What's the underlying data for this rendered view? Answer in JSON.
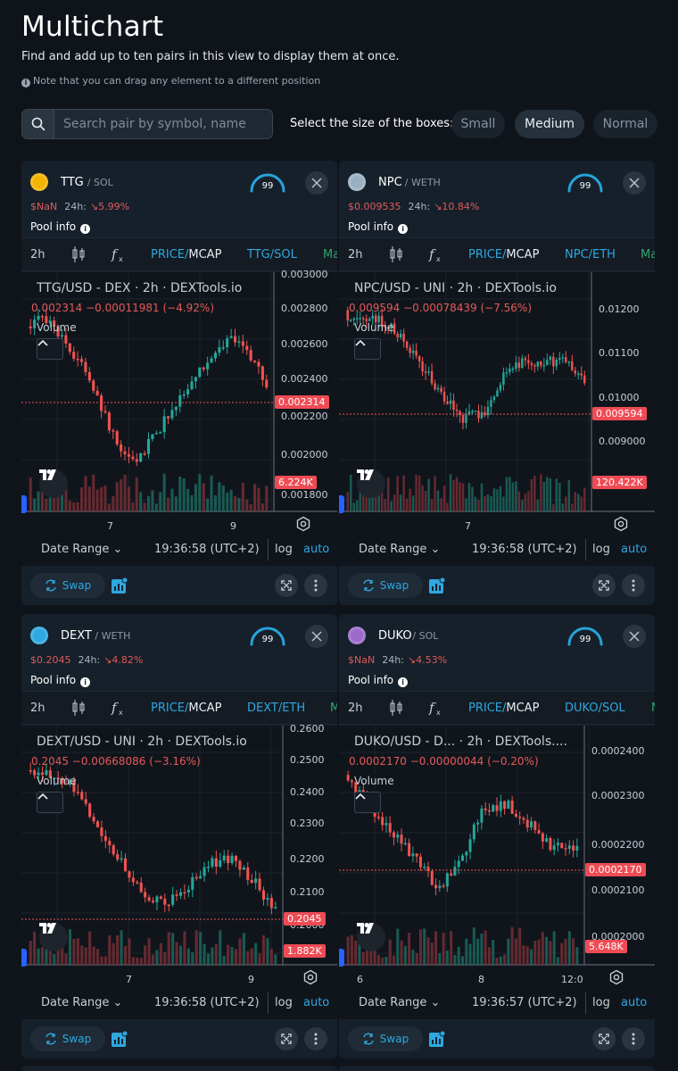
{
  "page": {
    "title": "Multichart",
    "subtitle": "Find and add up to ten pairs in this view to display them at once.",
    "note": "Note that you can drag any element to a different position"
  },
  "search": {
    "placeholder": "Search pair by symbol, name"
  },
  "sizes": {
    "label": "Select the size of the boxes:",
    "small": "Small",
    "medium": "Medium",
    "normal": "Normal",
    "selected": "Medium"
  },
  "cards": [
    {
      "symbol": "TTG",
      "quote": "/ SOL",
      "score": "99",
      "price": "$NaN",
      "change_label": "24h:",
      "change": "5.99%",
      "pool_info": "Pool info",
      "toolbar": {
        "interval": "2h",
        "price": "PRICE",
        "mcap": "MCAP",
        "pair": "TTG/SOL",
        "extra": "Ma"
      },
      "legend": "TTG/USD - DEX · 2h · DEXTools.io",
      "ohlc": "0.002314  −0.00011981 (−4.92%)",
      "volume_label": "Volume",
      "y_ticks": [
        "0.003000",
        "0.002800",
        "0.002600",
        "0.002400",
        "0.002200",
        "0.002000",
        "0.001800"
      ],
      "price_badge": "0.002314",
      "volume_badge": "6.224K",
      "x_ticks": [
        "7",
        "9"
      ],
      "date_range": "Date Range",
      "time": "19:36:58 (UTC+2)",
      "log": "log",
      "auto": "auto",
      "swap": "Swap",
      "icon_color": "#f5b400"
    },
    {
      "symbol": "NPC",
      "quote": "/ WETH",
      "score": "99",
      "price": "$0.009535",
      "change_label": "24h:",
      "change": "10.84%",
      "pool_info": "Pool info",
      "toolbar": {
        "interval": "2h",
        "price": "PRICE",
        "mcap": "MCAP",
        "pair": "NPC/ETH",
        "extra": "Ma"
      },
      "legend": "NPC/USD - UNI · 2h · DEXTools.io",
      "ohlc": "0.009594  −0.00078439 (−7.56%)",
      "volume_label": "Volume",
      "y_ticks": [
        "0.01200",
        "0.01100",
        "0.01000",
        "0.009000"
      ],
      "price_badge": "0.009594",
      "volume_badge": "120.422K",
      "x_ticks": [
        "7"
      ],
      "date_range": "Date Range",
      "time": "19:36:58 (UTC+2)",
      "log": "log",
      "auto": "auto",
      "swap": "Swap",
      "icon_color": "#9ab0c2"
    },
    {
      "symbol": "DEXT",
      "quote": "/ WETH",
      "score": "99",
      "price": "$0.2045",
      "change_label": "24h:",
      "change": "4.82%",
      "pool_info": "Pool info",
      "toolbar": {
        "interval": "2h",
        "price": "PRICE",
        "mcap": "MCAP",
        "pair": "DEXT/ETH",
        "extra": "M"
      },
      "legend": "DEXT/USD - UNI · 2h · DEXTools.io",
      "ohlc": "0.2045  −0.00668086 (−3.16%)",
      "volume_label": "Volume",
      "y_ticks": [
        "0.2600",
        "0.2500",
        "0.2400",
        "0.2300",
        "0.2200",
        "0.2100",
        "0.2000"
      ],
      "price_badge": "0.2045",
      "volume_badge": "1.882K",
      "x_ticks": [
        "7",
        "9"
      ],
      "date_range": "Date Range",
      "time": "19:36:58 (UTC+2)",
      "log": "log",
      "auto": "auto",
      "swap": "Swap",
      "icon_color": "#2ea8e0"
    },
    {
      "symbol": "DUKO",
      "quote": "/ SOL",
      "score": "99",
      "price": "$NaN",
      "change_label": "24h:",
      "change": "4.53%",
      "pool_info": "Pool info",
      "toolbar": {
        "interval": "2h",
        "price": "PRICE",
        "mcap": "MCAP",
        "pair": "DUKO/SOL",
        "extra": "M"
      },
      "legend": "DUKO/USD - D... · 2h · DEXTools....",
      "ohlc": "0.0002170  −0.00000044 (−0.20%)",
      "volume_label": "Volume",
      "y_ticks": [
        "0.0002400",
        "0.0002300",
        "0.0002200",
        "0.0002100",
        "0.0002000"
      ],
      "price_badge": "0.0002170",
      "volume_badge": "5.648K",
      "x_ticks": [
        "6",
        "8",
        "12:0"
      ],
      "date_range": "Date Range",
      "time": "19:36:57 (UTC+2)",
      "log": "log",
      "auto": "auto",
      "swap": "Swap",
      "icon_color": "#9c6ac8"
    }
  ]
}
